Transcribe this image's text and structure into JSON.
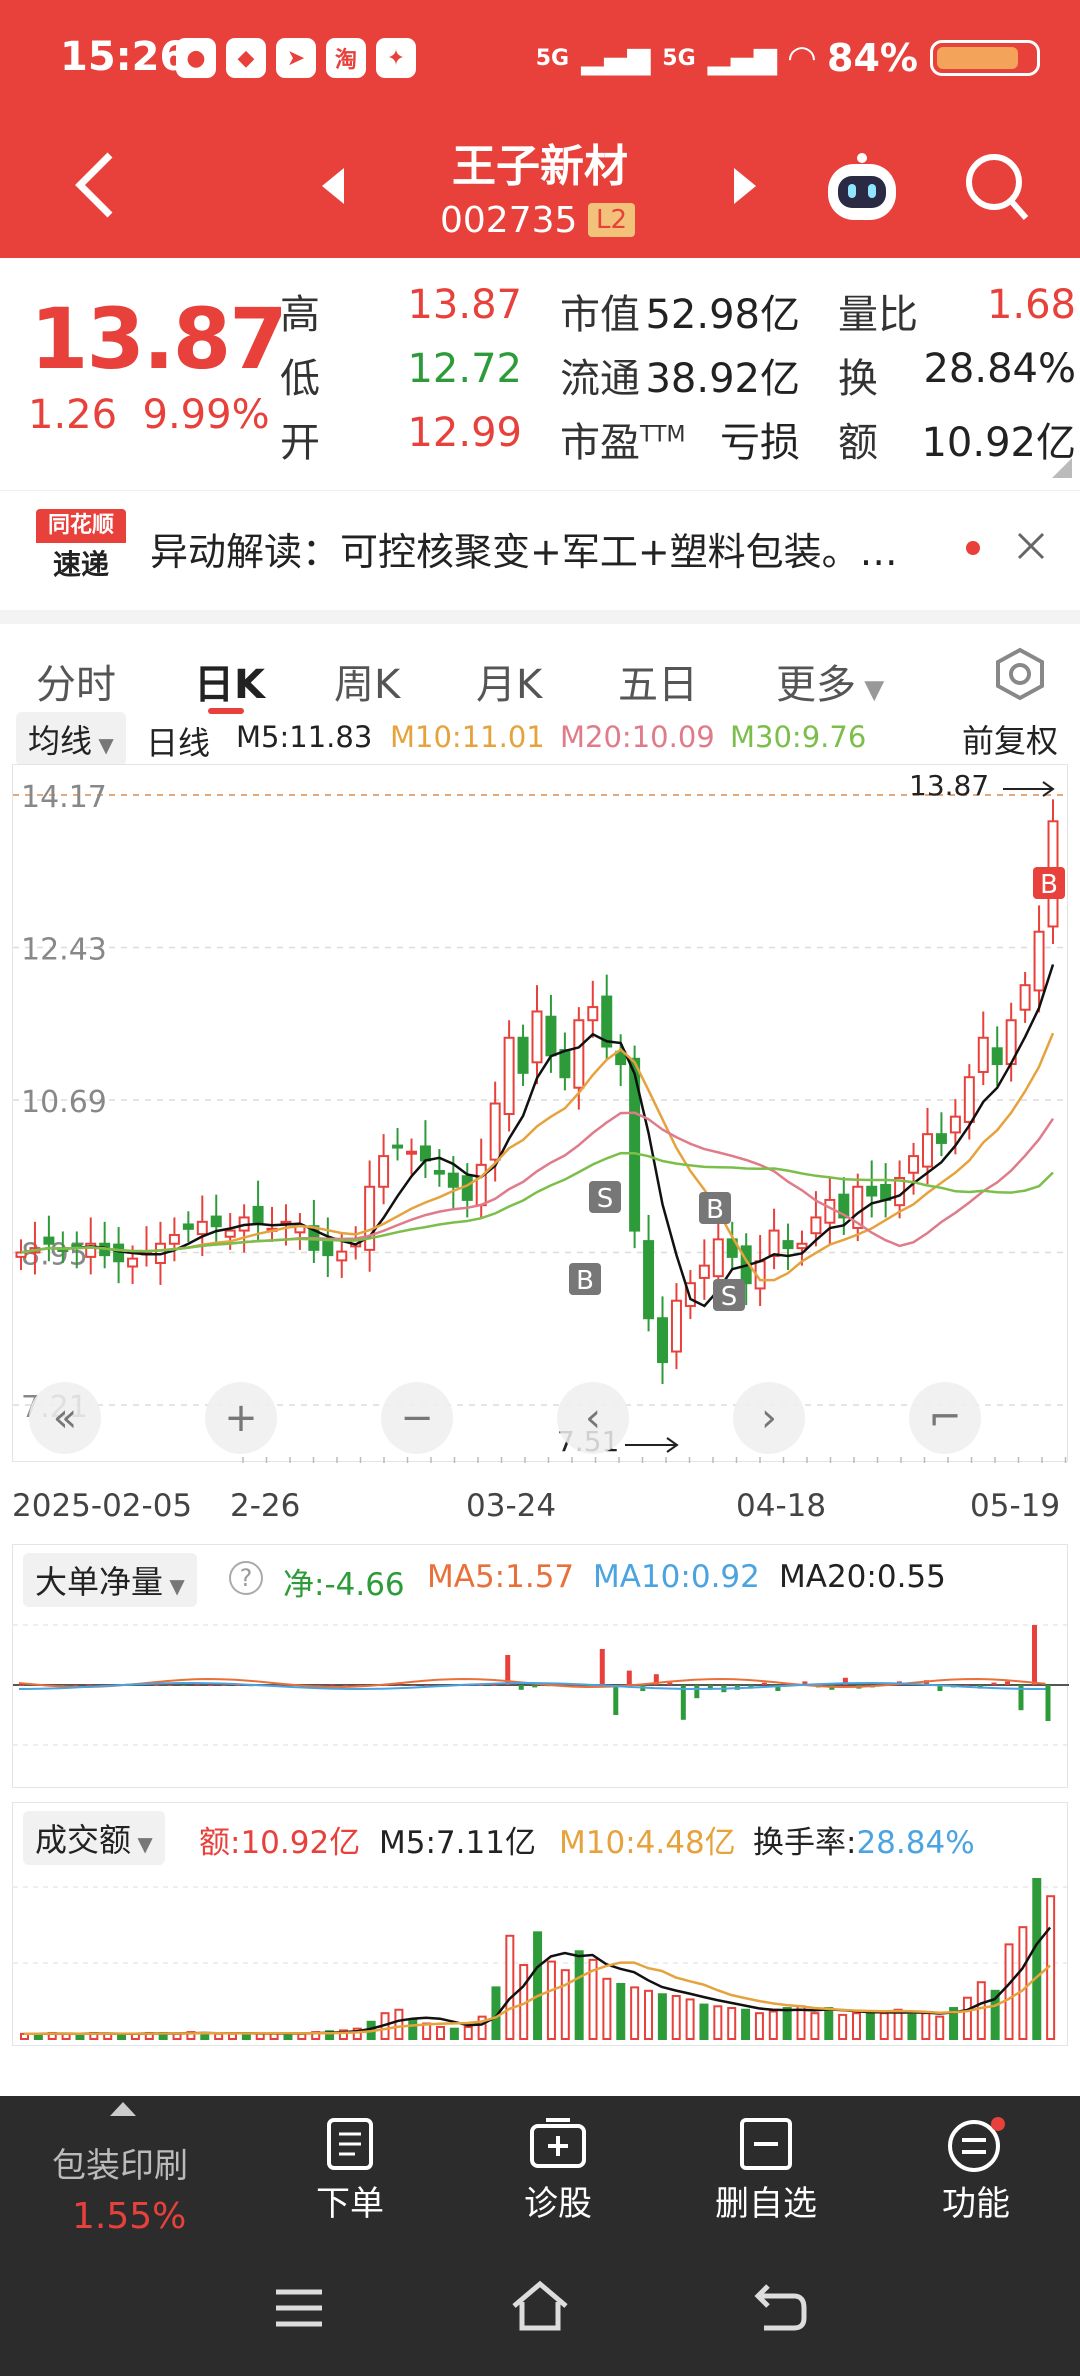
{
  "status": {
    "time": "15:26",
    "battery": "84%",
    "net1": "5G",
    "net2": "5G",
    "battery_level": 0.84
  },
  "nav": {
    "title": "王子新材",
    "code": "002735",
    "level": "L2"
  },
  "quote": {
    "price": "13.87",
    "change": "1.26",
    "change_pct": "9.99%",
    "rows": [
      {
        "l1": "高",
        "v1": "13.87",
        "l2": "市值",
        "v2": "52.98亿",
        "l3": "量比",
        "v3": "1.68"
      },
      {
        "l1": "低",
        "v1": "12.72",
        "l2": "流通",
        "v2": "38.92亿",
        "l3": "换",
        "v3": "28.84%"
      },
      {
        "l1": "开",
        "v1": "12.99",
        "l2": "市盈",
        "l2_sup": "TTM",
        "v2": "亏损",
        "l3": "额",
        "v3": "10.92亿"
      }
    ]
  },
  "news": {
    "logo_top": "同花顺",
    "logo_bottom": "速递",
    "text": "异动解读：可控核聚变+军工+塑料包装。…"
  },
  "tabs": [
    "分时",
    "日K",
    "周K",
    "月K",
    "五日",
    "更多"
  ],
  "ma": {
    "chip": "均线",
    "type": "日线",
    "m5": "M5:11.83",
    "m10": "M10:11.01",
    "m20": "M20:10.09",
    "m30": "M30:9.76",
    "adjust": "前复权"
  },
  "kline": {
    "y_labels": [
      "14.17",
      "12.43",
      "10.69",
      "8.95",
      "7.21"
    ],
    "high_label": "13.87",
    "low_label": "7.51",
    "x_labels": [
      "2025-02-05",
      "2-26",
      "03-24",
      "04-18",
      "05-19"
    ],
    "markers": [
      "B",
      "S",
      "B",
      "S",
      "B"
    ]
  },
  "big": {
    "chip": "大单净量",
    "net": "净:-4.66",
    "ma5": "MA5:1.57",
    "ma10": "MA10:0.92",
    "ma20": "MA20:0.55"
  },
  "vol": {
    "chip": "成交额",
    "amt": "额:10.92亿",
    "m5": "M5:7.11亿",
    "m10": "M10:4.48亿",
    "turn_label": "换手率:",
    "turn": "28.84%"
  },
  "bottom": {
    "sector": "包装印刷",
    "sector_pct": "1.55%",
    "order": "下单",
    "diag": "诊股",
    "del": "删自选",
    "func": "功能"
  },
  "colors": {
    "up": "#e8403a",
    "down": "#2e9b3a",
    "m10": "#e6a23c",
    "m20": "#e07b8a",
    "m30": "#7bbf4a"
  }
}
